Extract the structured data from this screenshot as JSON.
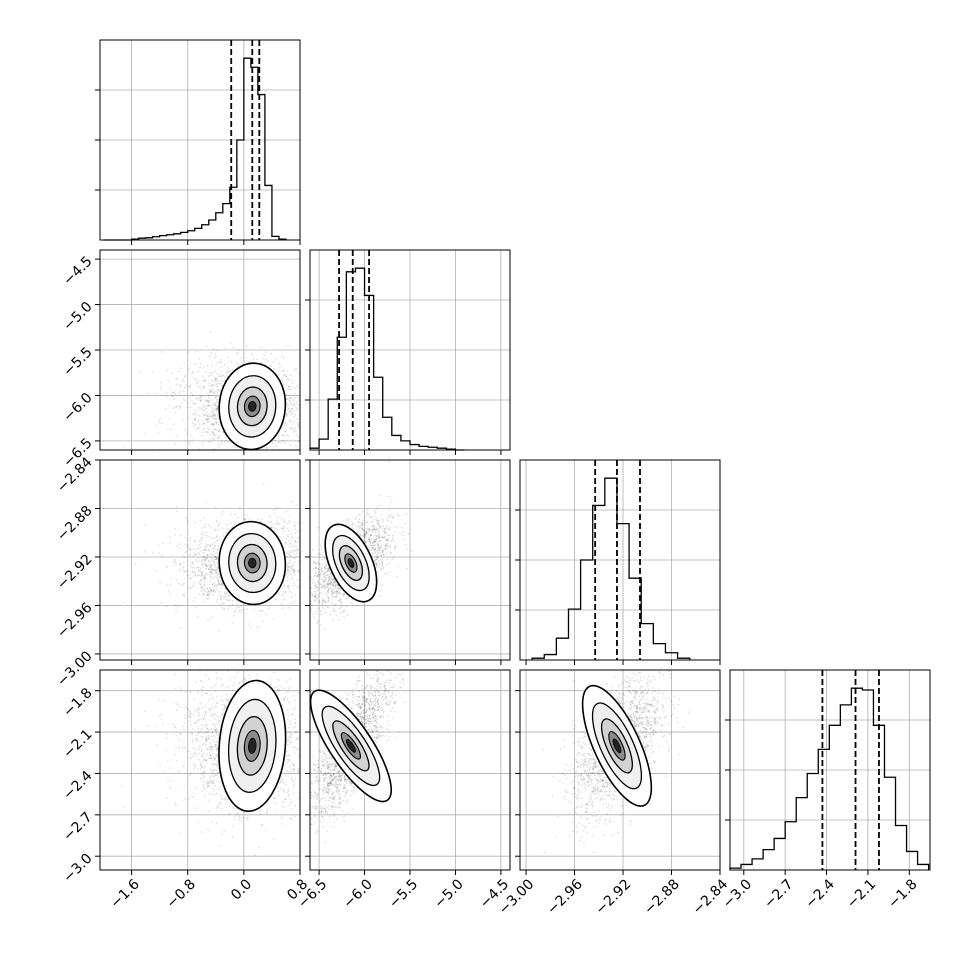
{
  "chart_data": {
    "type": "corner",
    "grid": true,
    "parameters": [
      {
        "name": "",
        "range": [
          -2.05,
          0.8
        ],
        "ticks": [
          -1.6,
          -0.8,
          0.0,
          0.8
        ],
        "tick_labels": [
          "−1.6",
          "−0.8",
          "0.0",
          "0.8"
        ],
        "quantiles": [
          -0.18,
          0.12,
          0.22
        ],
        "hist": {
          "x": [
            -1.95,
            -1.85,
            -1.75,
            -1.65,
            -1.55,
            -1.45,
            -1.35,
            -1.25,
            -1.15,
            -1.05,
            -0.95,
            -0.85,
            -0.75,
            -0.65,
            -0.55,
            -0.45,
            -0.35,
            -0.25,
            -0.15,
            -0.05,
            0.05,
            0.15,
            0.25,
            0.35,
            0.45,
            0.55
          ],
          "y": [
            0,
            0,
            0,
            0,
            0.5,
            1,
            1.2,
            1.8,
            2.4,
            2.9,
            3.4,
            4.2,
            5.1,
            6.4,
            8.4,
            11.0,
            15.0,
            20.0,
            29.0,
            55.0,
            100.0,
            95.0,
            80.0,
            30.0,
            2.0,
            0.5
          ]
        }
      },
      {
        "name": "",
        "range": [
          -6.6,
          -4.4
        ],
        "ticks": [
          -6.5,
          -6.0,
          -5.5,
          -5.0,
          -4.5
        ],
        "tick_labels": [
          "−6.5",
          "−6.0",
          "−5.5",
          "−5.0",
          "−4.5"
        ],
        "quantiles": [
          -6.28,
          -6.13,
          -5.95
        ],
        "hist": {
          "x": [
            -6.55,
            -6.45,
            -6.35,
            -6.25,
            -6.15,
            -6.05,
            -5.95,
            -5.85,
            -5.75,
            -5.65,
            -5.55,
            -5.45,
            -5.35,
            -5.25,
            -5.15,
            -5.05,
            -4.95
          ],
          "y": [
            1,
            6,
            28,
            62,
            98,
            100,
            85,
            40,
            18,
            8,
            5,
            3,
            2,
            1.5,
            1,
            0.5,
            0
          ]
        }
      },
      {
        "name": "",
        "range": [
          -3.005,
          -2.84
        ],
        "ticks": [
          -3.0,
          -2.96,
          -2.92,
          -2.88,
          -2.84
        ],
        "tick_labels": [
          "−3.00",
          "−2.96",
          "−2.92",
          "−2.88",
          "−2.84"
        ],
        "quantiles": [
          -2.943,
          -2.925,
          -2.906
        ],
        "hist": {
          "x": [
            -2.99,
            -2.98,
            -2.97,
            -2.96,
            -2.95,
            -2.94,
            -2.93,
            -2.92,
            -2.91,
            -2.9,
            -2.89,
            -2.88,
            -2.87
          ],
          "y": [
            1,
            3,
            12,
            28,
            55,
            85,
            100,
            75,
            45,
            20,
            9,
            4,
            1
          ]
        }
      },
      {
        "name": "",
        "range": [
          -3.1,
          -1.65
        ],
        "ticks": [
          -3.0,
          -2.7,
          -2.4,
          -2.1,
          -1.8
        ],
        "tick_labels": [
          "−3.0",
          "−2.7",
          "−2.4",
          "−2.1",
          "−1.8"
        ],
        "quantiles": [
          -2.43,
          -2.19,
          -2.02
        ],
        "hist": {
          "x": [
            -3.06,
            -2.98,
            -2.9,
            -2.82,
            -2.74,
            -2.66,
            -2.58,
            -2.5,
            -2.42,
            -2.34,
            -2.26,
            -2.18,
            -2.1,
            -2.02,
            -1.94,
            -1.86,
            -1.78,
            -1.7
          ],
          "y": [
            1,
            3,
            6,
            11,
            17,
            26,
            39,
            52,
            65,
            78,
            89,
            98,
            97,
            78,
            50,
            24,
            10,
            3
          ]
        }
      }
    ],
    "panels": [
      {
        "row": 1,
        "col": 0,
        "x_param": 0,
        "y_param": 1,
        "center": [
          0.12,
          -6.12
        ],
        "spread": [
          0.45,
          0.25
        ],
        "rho": -0.1
      },
      {
        "row": 2,
        "col": 0,
        "x_param": 0,
        "y_param": 2,
        "center": [
          0.12,
          -2.925
        ],
        "spread": [
          0.45,
          0.018
        ],
        "rho": 0.1
      },
      {
        "row": 2,
        "col": 1,
        "x_param": 1,
        "y_param": 2,
        "center": [
          -6.15,
          -2.925
        ],
        "spread": [
          0.22,
          0.018
        ],
        "rho": 0.55
      },
      {
        "row": 3,
        "col": 0,
        "x_param": 0,
        "y_param": 3,
        "center": [
          0.12,
          -2.2
        ],
        "spread": [
          0.45,
          0.25
        ],
        "rho": -0.1
      },
      {
        "row": 3,
        "col": 1,
        "x_param": 1,
        "y_param": 3,
        "center": [
          -6.15,
          -2.2
        ],
        "spread": [
          0.22,
          0.25
        ],
        "rho": 0.75
      },
      {
        "row": 3,
        "col": 2,
        "x_param": 2,
        "y_param": 3,
        "center": [
          -2.925,
          -2.2
        ],
        "spread": [
          0.018,
          0.25
        ],
        "rho": 0.55
      }
    ]
  }
}
